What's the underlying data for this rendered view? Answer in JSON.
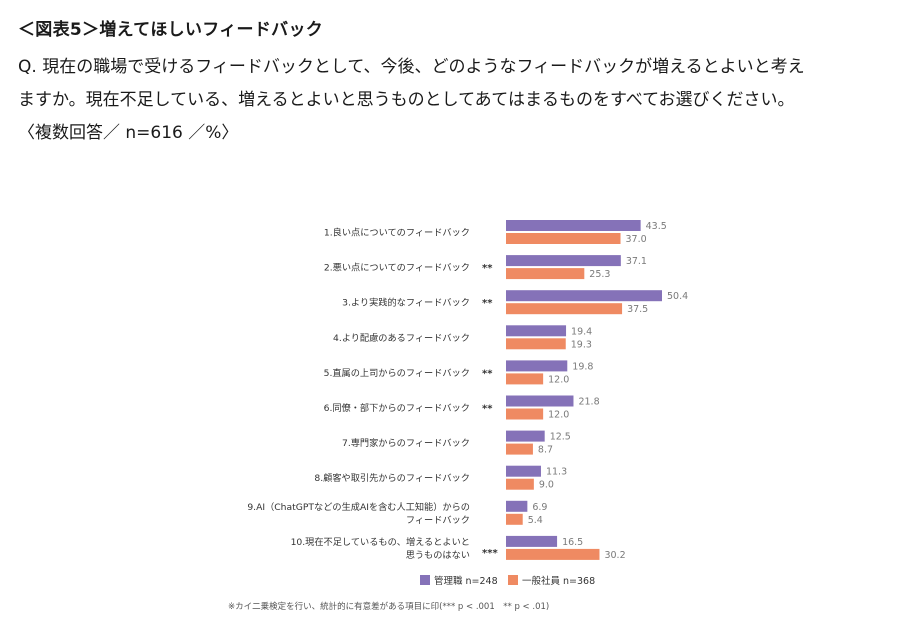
{
  "header": {
    "figure_title": "＜図表5＞増えてほしいフィードバック",
    "question_lines": [
      "Q. 現在の職場で受けるフィードバックとして、今後、どのようなフィードバックが増えるとよいと考え",
      "ますか。現在不足している、増えるとよいと思うものとしてあてはまるものをすべてお選びください。",
      "〈複数回答／ n=616 ／%〉"
    ]
  },
  "note": "※カイ二乗検定を行い、統計的に有意差がある項目に印(*** p < .001　** p < .01)",
  "colors": {
    "manager": "#8572b8",
    "staff": "#ef8a62"
  },
  "chart_data": {
    "type": "bar",
    "orientation": "horizontal",
    "categories": [
      [
        "1.良い点についてのフィードバック"
      ],
      [
        "2.悪い点についてのフィードバック"
      ],
      [
        "3.より実践的なフィードバック"
      ],
      [
        "4.より配慮のあるフィードバック"
      ],
      [
        "5.直属の上司からのフィードバック"
      ],
      [
        "6.同僚・部下からのフィードバック"
      ],
      [
        "7.専門家からのフィードバック"
      ],
      [
        "8.顧客や取引先からのフィードバック"
      ],
      [
        "9.AI（ChatGPTなどの生成AIを含む人工知能）からの",
        "フィードバック"
      ],
      [
        "10.現在不足しているもの、増えるとよいと",
        "思うものはない"
      ]
    ],
    "significance": [
      "",
      "**",
      "**",
      "",
      "**",
      "**",
      "",
      "",
      "",
      "***"
    ],
    "series": [
      {
        "name": "管理職 n=248",
        "values": [
          43.5,
          37.1,
          50.4,
          19.4,
          19.8,
          21.8,
          12.5,
          11.3,
          6.9,
          16.5
        ]
      },
      {
        "name": "一般社員 n=368",
        "values": [
          37.0,
          25.3,
          37.5,
          19.3,
          12.0,
          12.0,
          8.7,
          9.0,
          5.4,
          30.2
        ]
      }
    ],
    "xlim": [
      0,
      60
    ],
    "legend_position": "bottom"
  }
}
